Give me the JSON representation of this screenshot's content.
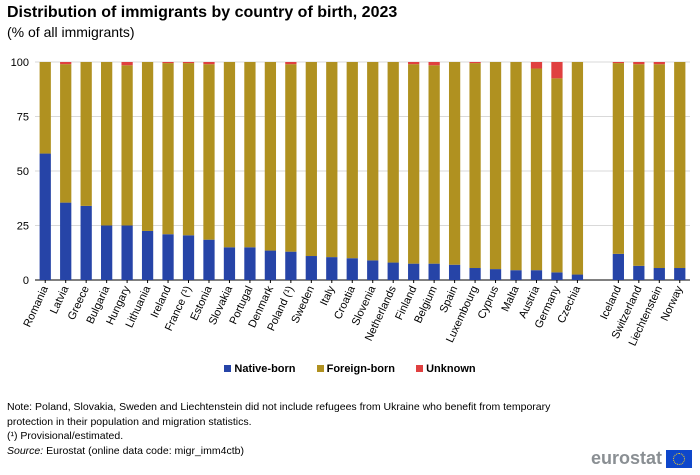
{
  "title": "Distribution of immigrants by country of birth, 2023",
  "subtitle": "(% of all immigrants)",
  "legend": {
    "native": "Native-born",
    "foreign": "Foreign-born",
    "unknown": "Unknown"
  },
  "colors": {
    "native": "#2644a7",
    "foreign": "#b09120",
    "unknown": "#e04040",
    "grid": "#d9d9d9"
  },
  "note": "Note: Poland, Slovakia, Sweden and Liechtenstein did not include refugees from Ukraine who benefit from temporary protection in their population and migration statistics.",
  "note2": "(¹) Provisional/estimated.",
  "source_label": "Source:",
  "source_text": "Eurostat  (online data code: migr_imm4ctb)",
  "logo": "eurostat",
  "chart_data": {
    "type": "bar",
    "stacked": true,
    "ylim": [
      0,
      100
    ],
    "yticks": [
      0,
      25,
      50,
      75,
      100
    ],
    "grid": true,
    "legend_position": "bottom",
    "categories": [
      "Romania",
      "Latvia",
      "Greece",
      "Bulgaria",
      "Hungary",
      "Lithuania",
      "Ireland",
      "France (¹)",
      "Estonia",
      "Slovakia",
      "Portugal",
      "Denmark",
      "Poland (¹)",
      "Sweden",
      "Italy",
      "Croatia",
      "Slovenia",
      "Netherlands",
      "Finland",
      "Belgium",
      "Spain",
      "Luxembourg",
      "Cyprus",
      "Malta",
      "Austria",
      "Germany",
      "Czechia",
      "",
      "Iceland",
      "Switzerland",
      "Liechtenstein",
      "Norway"
    ],
    "series": [
      {
        "name": "Native-born",
        "values": [
          58,
          35.5,
          34,
          25,
          25,
          22.5,
          21,
          20.5,
          18.5,
          15,
          15,
          13.5,
          13,
          11,
          10.5,
          10,
          9,
          8,
          7.5,
          7.5,
          7,
          5.5,
          5,
          4.5,
          4.5,
          3.5,
          2.5,
          null,
          12,
          6.5,
          5.5,
          5.5
        ]
      },
      {
        "name": "Foreign-born",
        "values": [
          42,
          63.5,
          66,
          75,
          73.5,
          77.5,
          78.5,
          79,
          80.5,
          85,
          85,
          86.5,
          86,
          89,
          89.5,
          90,
          91,
          92,
          91.5,
          91,
          93,
          94,
          95,
          95.5,
          92.5,
          89,
          97.5,
          null,
          87.5,
          92.5,
          93.5,
          94.5
        ]
      },
      {
        "name": "Unknown",
        "values": [
          0,
          1,
          0,
          0,
          1.5,
          0,
          0.5,
          0.5,
          1,
          0,
          0,
          0,
          1,
          0,
          0,
          0,
          0,
          0,
          1,
          1.5,
          0,
          0.5,
          0,
          0,
          3,
          7.5,
          0,
          null,
          0.5,
          1,
          1,
          0
        ]
      }
    ]
  }
}
